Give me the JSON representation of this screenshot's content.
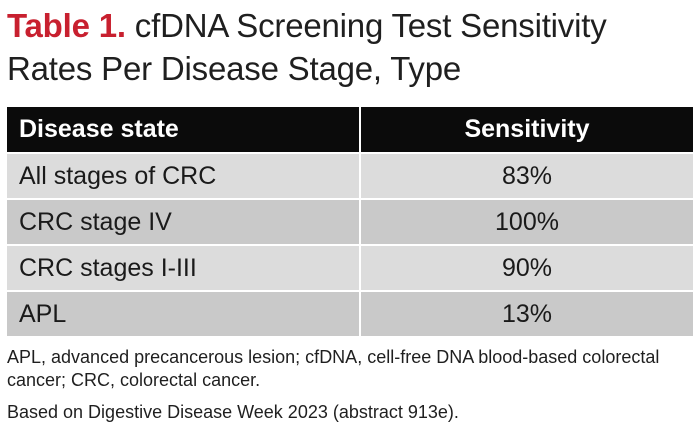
{
  "title": {
    "label": "Table 1.",
    "text": " cfDNA Screening Test Sensitivity Rates Per Disease Stage, Type"
  },
  "table": {
    "headers": [
      "Disease state",
      "Sensitivity"
    ],
    "rows": [
      [
        "All stages of CRC",
        "83%"
      ],
      [
        "CRC stage IV",
        "100%"
      ],
      [
        "CRC stages I-III",
        "90%"
      ],
      [
        "APL",
        "13%"
      ]
    ]
  },
  "notes": {
    "abbreviations": "APL, advanced precancerous lesion; cfDNA, cell-free DNA blood-based colorectal cancer; CRC, colorectal cancer.",
    "source": "Based on Digestive Disease Week 2023 (abstract 913e)."
  },
  "colors": {
    "accent": "#c8202f",
    "header_bg": "#0b0b0b",
    "row_light": "#dcdcdc",
    "row_dark": "#c9c9c9"
  }
}
